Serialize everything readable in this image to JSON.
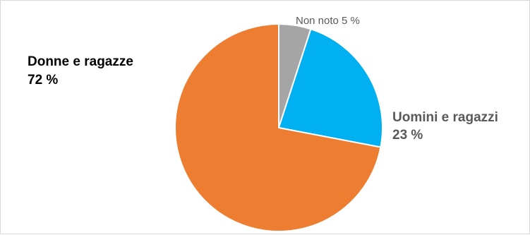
{
  "chart_data": {
    "type": "pie",
    "start_angle_deg": 0,
    "direction": "clockwise",
    "slices": [
      {
        "name": "Non noto",
        "value": 5,
        "value_label": "5 %",
        "color": "#a5a5a5"
      },
      {
        "name": "Uomini e ragazzi",
        "value": 23,
        "value_label": "23 %",
        "color": "#00b0f0"
      },
      {
        "name": "Donne e ragazze",
        "value": 72,
        "value_label": "72 %",
        "color": "#ed7d31"
      }
    ],
    "labels": {
      "unknown": "Non noto 5 %",
      "men_name": "Uomini e ragazzi",
      "men_pct": "23 %",
      "women_name": "Donne e ragazze",
      "women_pct": "72 %"
    }
  }
}
